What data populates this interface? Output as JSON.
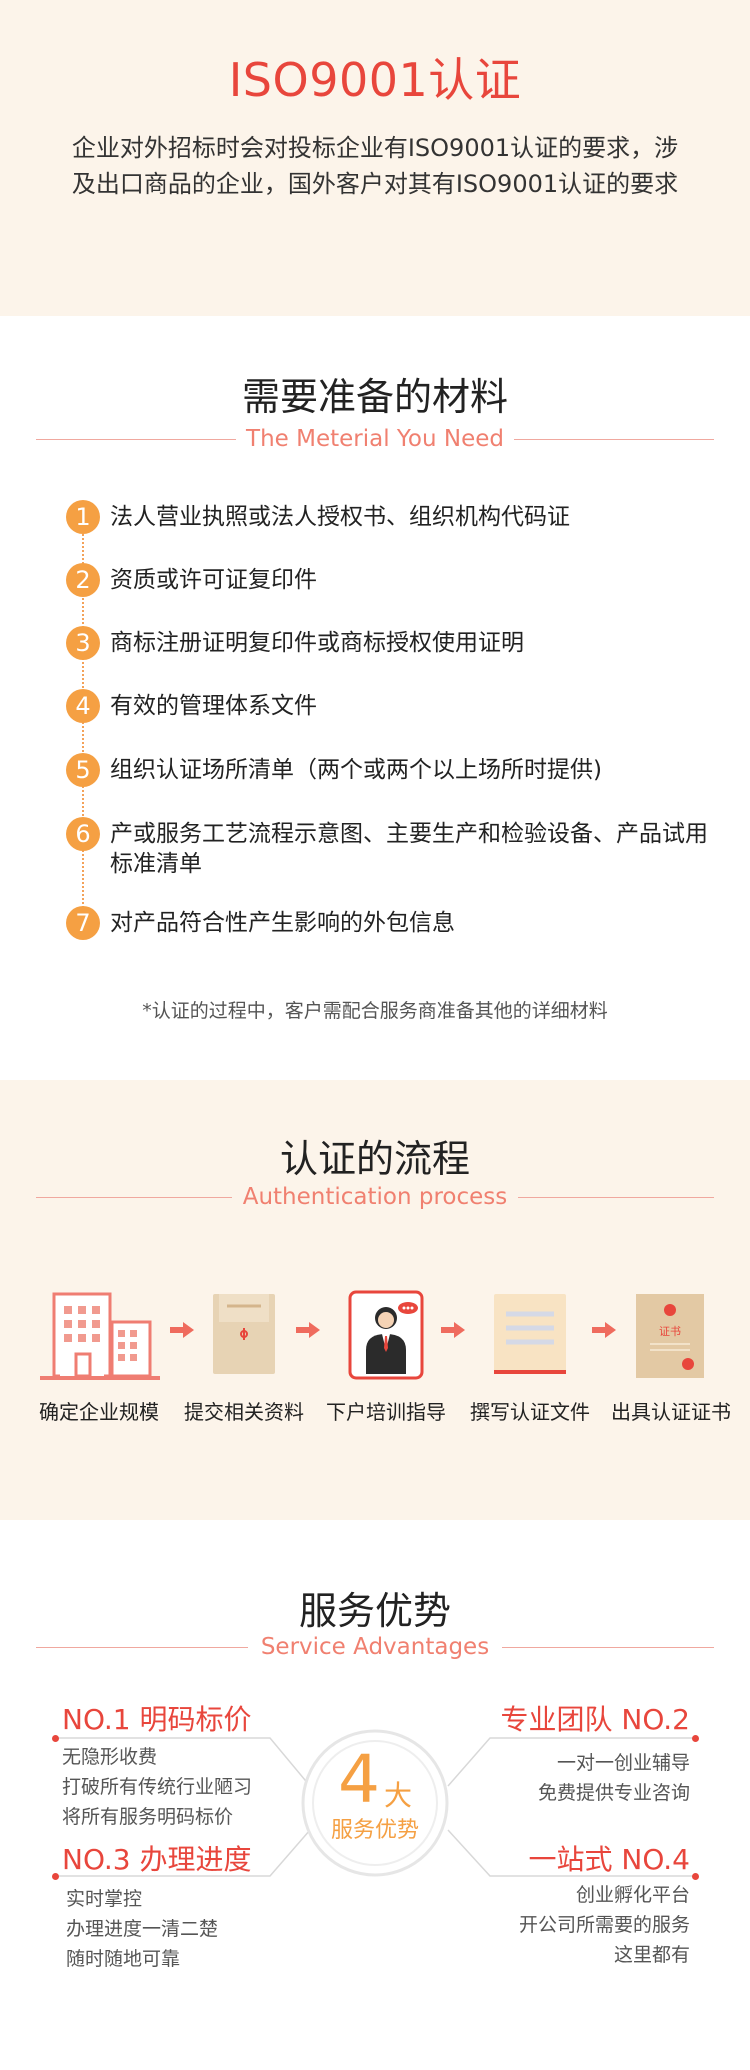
{
  "iso": {
    "title": "ISO9001认证",
    "description": "企业对外招标时会对投标企业有ISO9001认证的要求，涉及出口商品的企业，国外客户对其有ISO9001认证的要求"
  },
  "materials": {
    "title": "需要准备的材料",
    "subtitle": "The Meterial You Need",
    "items": [
      {
        "num": "1",
        "text": "法人营业执照或法人授权书、组织机构代码证"
      },
      {
        "num": "2",
        "text": "资质或许可证复印件"
      },
      {
        "num": "3",
        "text": "商标注册证明复印件或商标授权使用证明"
      },
      {
        "num": "4",
        "text": "有效的管理体系文件"
      },
      {
        "num": "5",
        "text": "组织认证场所清单（两个或两个以上场所时提供)"
      },
      {
        "num": "6",
        "text": "产或服务工艺流程示意图、主要生产和检验设备、产品试用标准清单"
      },
      {
        "num": "7",
        "text": "对产品符合性产生影响的外包信息"
      }
    ],
    "note": "*认证的过程中，客户需配合服务商准备其他的详细材料"
  },
  "process": {
    "title": "认证的流程",
    "subtitle": "Authentication process",
    "steps": [
      {
        "label": "确定企业规模",
        "icon": "building-icon"
      },
      {
        "label": "提交相关资料",
        "icon": "envelope-icon"
      },
      {
        "label": "下户培训指导",
        "icon": "consultant-icon"
      },
      {
        "label": "撰写认证文件",
        "icon": "document-icon"
      },
      {
        "label": "出具认证证书",
        "icon": "certificate-icon"
      }
    ],
    "certificate_text": "证书"
  },
  "advantages": {
    "title": "服务优势",
    "subtitle": "Service Advantages",
    "center_number": "4",
    "center_char": "大",
    "center_text": "服务优势",
    "items": [
      {
        "heading": "NO.1 明码标价",
        "lines": [
          "无隐形收费",
          "打破所有传统行业陋习",
          "将所有服务明码标价"
        ]
      },
      {
        "heading": "专业团队 NO.2",
        "lines": [
          "一对一创业辅导",
          "免费提供专业咨询"
        ]
      },
      {
        "heading": "NO.3 办理进度",
        "lines": [
          "实时掌控",
          "办理进度一清二楚",
          "随时随地可靠"
        ]
      },
      {
        "heading": "一站式 NO.4",
        "lines": [
          "创业孵化平台",
          "开公司所需要的服务",
          "这里都有"
        ]
      }
    ]
  },
  "colors": {
    "accent_red": "#e8463c",
    "accent_orange": "#f5a043",
    "cream_bg": "#fcf4ea",
    "subtitle_coral": "#f08070"
  }
}
